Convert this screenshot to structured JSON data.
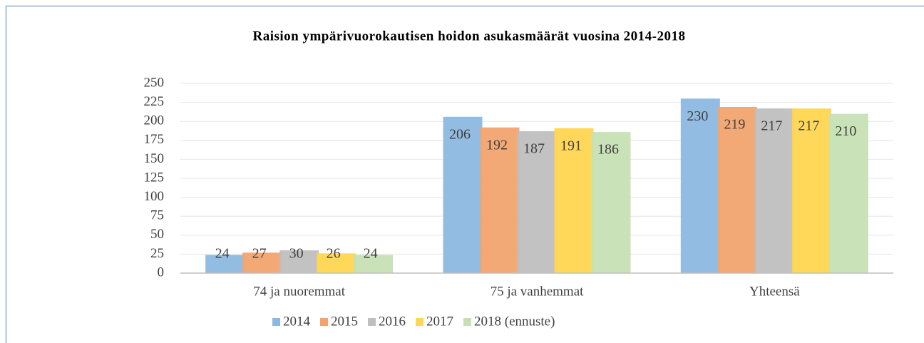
{
  "chart_data": {
    "type": "bar",
    "title": "Raision ympärivuorokautisen hoidon asukasmäärät vuosina 2014-2018",
    "categories": [
      "74 ja nuoremmat",
      "75 ja vanhemmat",
      "Yhteensä"
    ],
    "series": [
      {
        "name": "2014",
        "color": "#8db8e2",
        "values": [
          24,
          206,
          230
        ]
      },
      {
        "name": "2015",
        "color": "#f2a46e",
        "values": [
          27,
          192,
          219
        ]
      },
      {
        "name": "2016",
        "color": "#bfbfbf",
        "values": [
          30,
          187,
          217
        ]
      },
      {
        "name": "2017",
        "color": "#ffd650",
        "values": [
          26,
          191,
          217
        ]
      },
      {
        "name": "2018 (ennuste)",
        "color": "#c6e0b4",
        "values": [
          24,
          186,
          210
        ]
      }
    ],
    "ylim": [
      0,
      250
    ],
    "yticks": [
      0,
      25,
      50,
      75,
      100,
      125,
      150,
      175,
      200,
      225,
      250
    ],
    "grid": true,
    "legend": "bottom"
  }
}
